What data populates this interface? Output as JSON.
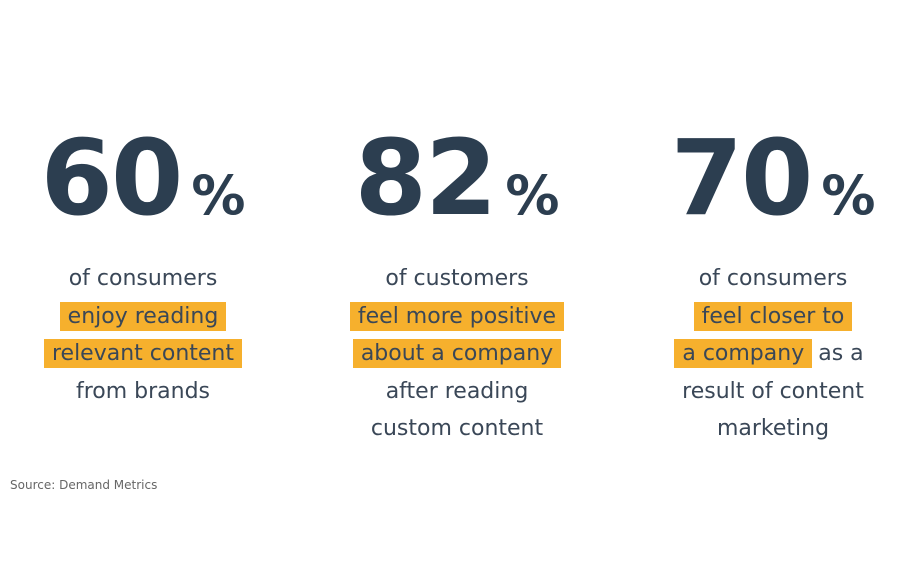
{
  "stats": [
    {
      "number": "60",
      "unit": "%",
      "lines": [
        [
          {
            "text": "of consumers",
            "highlight": false
          }
        ],
        [
          {
            "text": "enjoy reading",
            "highlight": true
          }
        ],
        [
          {
            "text": "relevant content",
            "highlight": true
          }
        ],
        [
          {
            "text": "from brands",
            "highlight": false
          }
        ]
      ]
    },
    {
      "number": "82",
      "unit": "%",
      "lines": [
        [
          {
            "text": "of customers",
            "highlight": false
          }
        ],
        [
          {
            "text": "feel more positive",
            "highlight": true
          }
        ],
        [
          {
            "text": "about a company",
            "highlight": true
          }
        ],
        [
          {
            "text": "after reading",
            "highlight": false
          }
        ],
        [
          {
            "text": "custom content",
            "highlight": false
          }
        ]
      ]
    },
    {
      "number": "70",
      "unit": "%",
      "lines": [
        [
          {
            "text": "of consumers",
            "highlight": false
          }
        ],
        [
          {
            "text": "feel closer to",
            "highlight": true
          }
        ],
        [
          {
            "text": "a company",
            "highlight": true
          },
          {
            "text": "as a",
            "highlight": false
          }
        ],
        [
          {
            "text": "result of content",
            "highlight": false
          }
        ],
        [
          {
            "text": "marketing",
            "highlight": false
          }
        ]
      ]
    }
  ],
  "source": "Source: Demand Metrics"
}
